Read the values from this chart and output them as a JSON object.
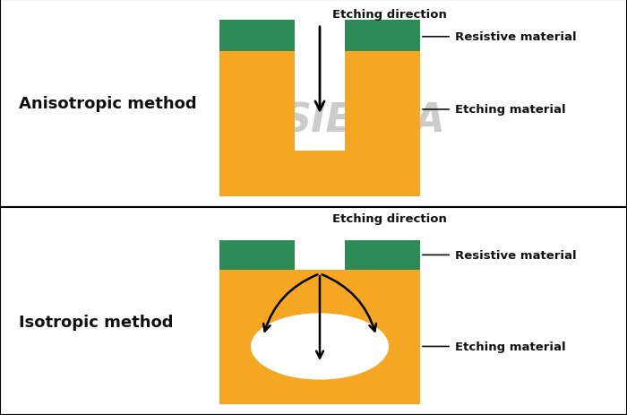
{
  "bg_color": "#ffffff",
  "orange_color": "#F5A623",
  "green_color": "#2E8B57",
  "text_color": "#111111",
  "watermark_color": "#cccccc",
  "title1": "Anisotropic method",
  "title2": "Isotropic method",
  "label_etching_dir": "Etching direction",
  "label_resistive": "Resistive material",
  "label_etching_mat": "Etching material",
  "label_fontsize": 9.5,
  "title_fontsize": 13
}
